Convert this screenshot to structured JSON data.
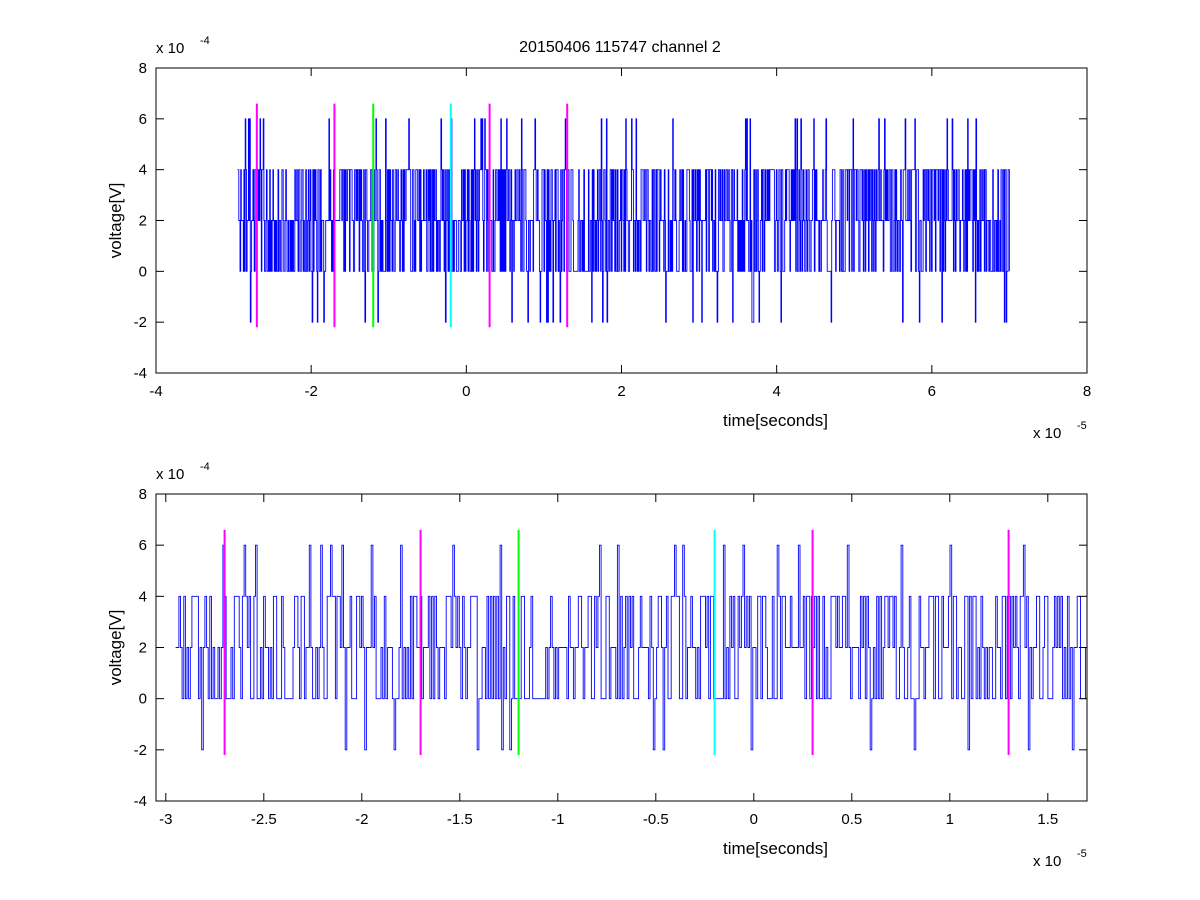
{
  "title": "20150406 115747 channel 2",
  "chart_data": [
    {
      "type": "line",
      "xlabel": "time[seconds]",
      "ylabel": "voltage[V]",
      "x_exponent_label": "x 10",
      "x_exponent": "-5",
      "y_exponent_label": "x 10",
      "y_exponent": "-4",
      "xlim": [
        -4,
        8
      ],
      "ylim": [
        -4,
        8
      ],
      "xticks": [
        -4,
        -2,
        0,
        2,
        4,
        6,
        8
      ],
      "yticks": [
        -4,
        -2,
        0,
        2,
        4,
        6,
        8
      ],
      "xtick_labels": [
        "-4",
        "-2",
        "0",
        "2",
        "4",
        "6",
        "8"
      ],
      "ytick_labels": [
        "-4",
        "-2",
        "0",
        "2",
        "4",
        "6",
        "8"
      ],
      "series_color": "#0000ff",
      "signal": {
        "x_start": -2.95,
        "x_end": 7.0,
        "n_points": 1200,
        "levels": [
          -2,
          0,
          2,
          4,
          6
        ],
        "baseline": 2
      },
      "markers": [
        {
          "x": -2.7,
          "color": "#ff00ff",
          "y_range": [
            -2.2,
            6.6
          ]
        },
        {
          "x": -1.7,
          "color": "#ff00ff",
          "y_range": [
            -2.2,
            6.6
          ]
        },
        {
          "x": -1.2,
          "color": "#00ff00",
          "y_range": [
            -2.2,
            6.6
          ]
        },
        {
          "x": -0.2,
          "color": "#00ffff",
          "y_range": [
            -2.2,
            6.6
          ]
        },
        {
          "x": 0.3,
          "color": "#ff00ff",
          "y_range": [
            -2.2,
            6.6
          ]
        },
        {
          "x": 1.3,
          "color": "#ff00ff",
          "y_range": [
            -2.2,
            6.6
          ]
        }
      ]
    },
    {
      "type": "line",
      "xlabel": "time[seconds]",
      "ylabel": "voltage[V]",
      "x_exponent_label": "x 10",
      "x_exponent": "-5",
      "y_exponent_label": "x 10",
      "y_exponent": "-4",
      "xlim": [
        -3.05,
        1.7
      ],
      "ylim": [
        -4,
        8
      ],
      "xticks": [
        -3,
        -2.5,
        -2,
        -1.5,
        -1,
        -0.5,
        0,
        0.5,
        1,
        1.5
      ],
      "yticks": [
        -4,
        -2,
        0,
        2,
        4,
        6,
        8
      ],
      "xtick_labels": [
        "-3",
        "-2.5",
        "-2",
        "-1.5",
        "-1",
        "-0.5",
        "0",
        "0.5",
        "1",
        "1.5"
      ],
      "ytick_labels": [
        "-4",
        "-2",
        "0",
        "2",
        "4",
        "6",
        "8"
      ],
      "series_color": "#0000ff",
      "signal": {
        "x_start": -2.95,
        "x_end": 1.7,
        "n_points": 560,
        "levels": [
          -2,
          0,
          2,
          4,
          6
        ],
        "baseline": 2
      },
      "markers": [
        {
          "x": -2.7,
          "color": "#ff00ff",
          "y_range": [
            -2.2,
            6.6
          ]
        },
        {
          "x": -1.7,
          "color": "#ff00ff",
          "y_range": [
            -2.2,
            6.6
          ]
        },
        {
          "x": -1.2,
          "color": "#00ff00",
          "y_range": [
            -2.2,
            6.6
          ]
        },
        {
          "x": -0.2,
          "color": "#00ffff",
          "y_range": [
            -2.2,
            6.6
          ]
        },
        {
          "x": 0.3,
          "color": "#ff00ff",
          "y_range": [
            -2.2,
            6.6
          ]
        },
        {
          "x": 1.3,
          "color": "#ff00ff",
          "y_range": [
            -2.2,
            6.6
          ]
        }
      ]
    }
  ]
}
